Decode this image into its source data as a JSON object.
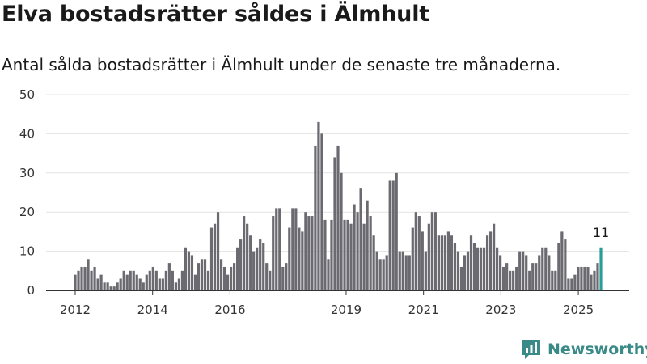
{
  "brand": {
    "name": "Newsworthy",
    "icon": "newsworthy-logo-icon",
    "color": "#3a8b88"
  },
  "chart_data": {
    "type": "bar",
    "title": "Elva bostadsrätter såldes i Älmhult",
    "subtitle": "Antal sålda bostadsrätter i Älmhult under de senaste tre månaderna.",
    "xlabel": "",
    "ylabel": "",
    "ylim": [
      0,
      50
    ],
    "yticks": [
      0,
      10,
      20,
      30,
      40,
      50
    ],
    "xticks": [
      {
        "year": 2012,
        "label": "2012"
      },
      {
        "year": 2014,
        "label": "2014"
      },
      {
        "year": 2016,
        "label": "2016"
      },
      {
        "year": 2019,
        "label": "2019"
      },
      {
        "year": 2021,
        "label": "2021"
      },
      {
        "year": 2023,
        "label": "2023"
      },
      {
        "year": 2025,
        "label": "2025"
      }
    ],
    "grid": true,
    "legend": "none",
    "bar_color": "#6b6a70",
    "highlight_color": "#2a9d96",
    "period": {
      "first_month": "2012-01",
      "last_month": "2025-08"
    },
    "values": [
      4,
      5,
      6,
      6,
      8,
      5,
      6,
      3,
      4,
      2,
      2,
      1,
      1,
      2,
      3,
      5,
      4,
      5,
      5,
      4,
      3,
      2,
      4,
      5,
      6,
      5,
      3,
      3,
      5,
      7,
      5,
      2,
      3,
      5,
      11,
      10,
      9,
      4,
      7,
      8,
      8,
      5,
      16,
      17,
      20,
      8,
      6,
      4,
      6,
      7,
      11,
      13,
      19,
      17,
      14,
      10,
      11,
      13,
      12,
      7,
      5,
      19,
      21,
      21,
      6,
      7,
      16,
      21,
      21,
      16,
      15,
      20,
      19,
      19,
      37,
      43,
      40,
      18,
      8,
      18,
      34,
      37,
      30,
      18,
      18,
      17,
      22,
      20,
      26,
      17,
      23,
      19,
      14,
      10,
      8,
      8,
      9,
      28,
      28,
      30,
      10,
      10,
      9,
      9,
      16,
      20,
      19,
      15,
      10,
      17,
      20,
      20,
      14,
      14,
      14,
      15,
      14,
      12,
      10,
      6,
      9,
      10,
      14,
      12,
      11,
      11,
      11,
      14,
      15,
      17,
      11,
      9,
      6,
      7,
      5,
      5,
      6,
      10,
      10,
      9,
      5,
      7,
      7,
      9,
      11,
      11,
      9,
      5,
      5,
      12,
      15,
      13,
      3,
      3,
      4,
      6,
      6,
      6,
      6,
      4,
      5,
      7,
      11
    ],
    "annotation": {
      "label": "11",
      "target": "last"
    }
  }
}
